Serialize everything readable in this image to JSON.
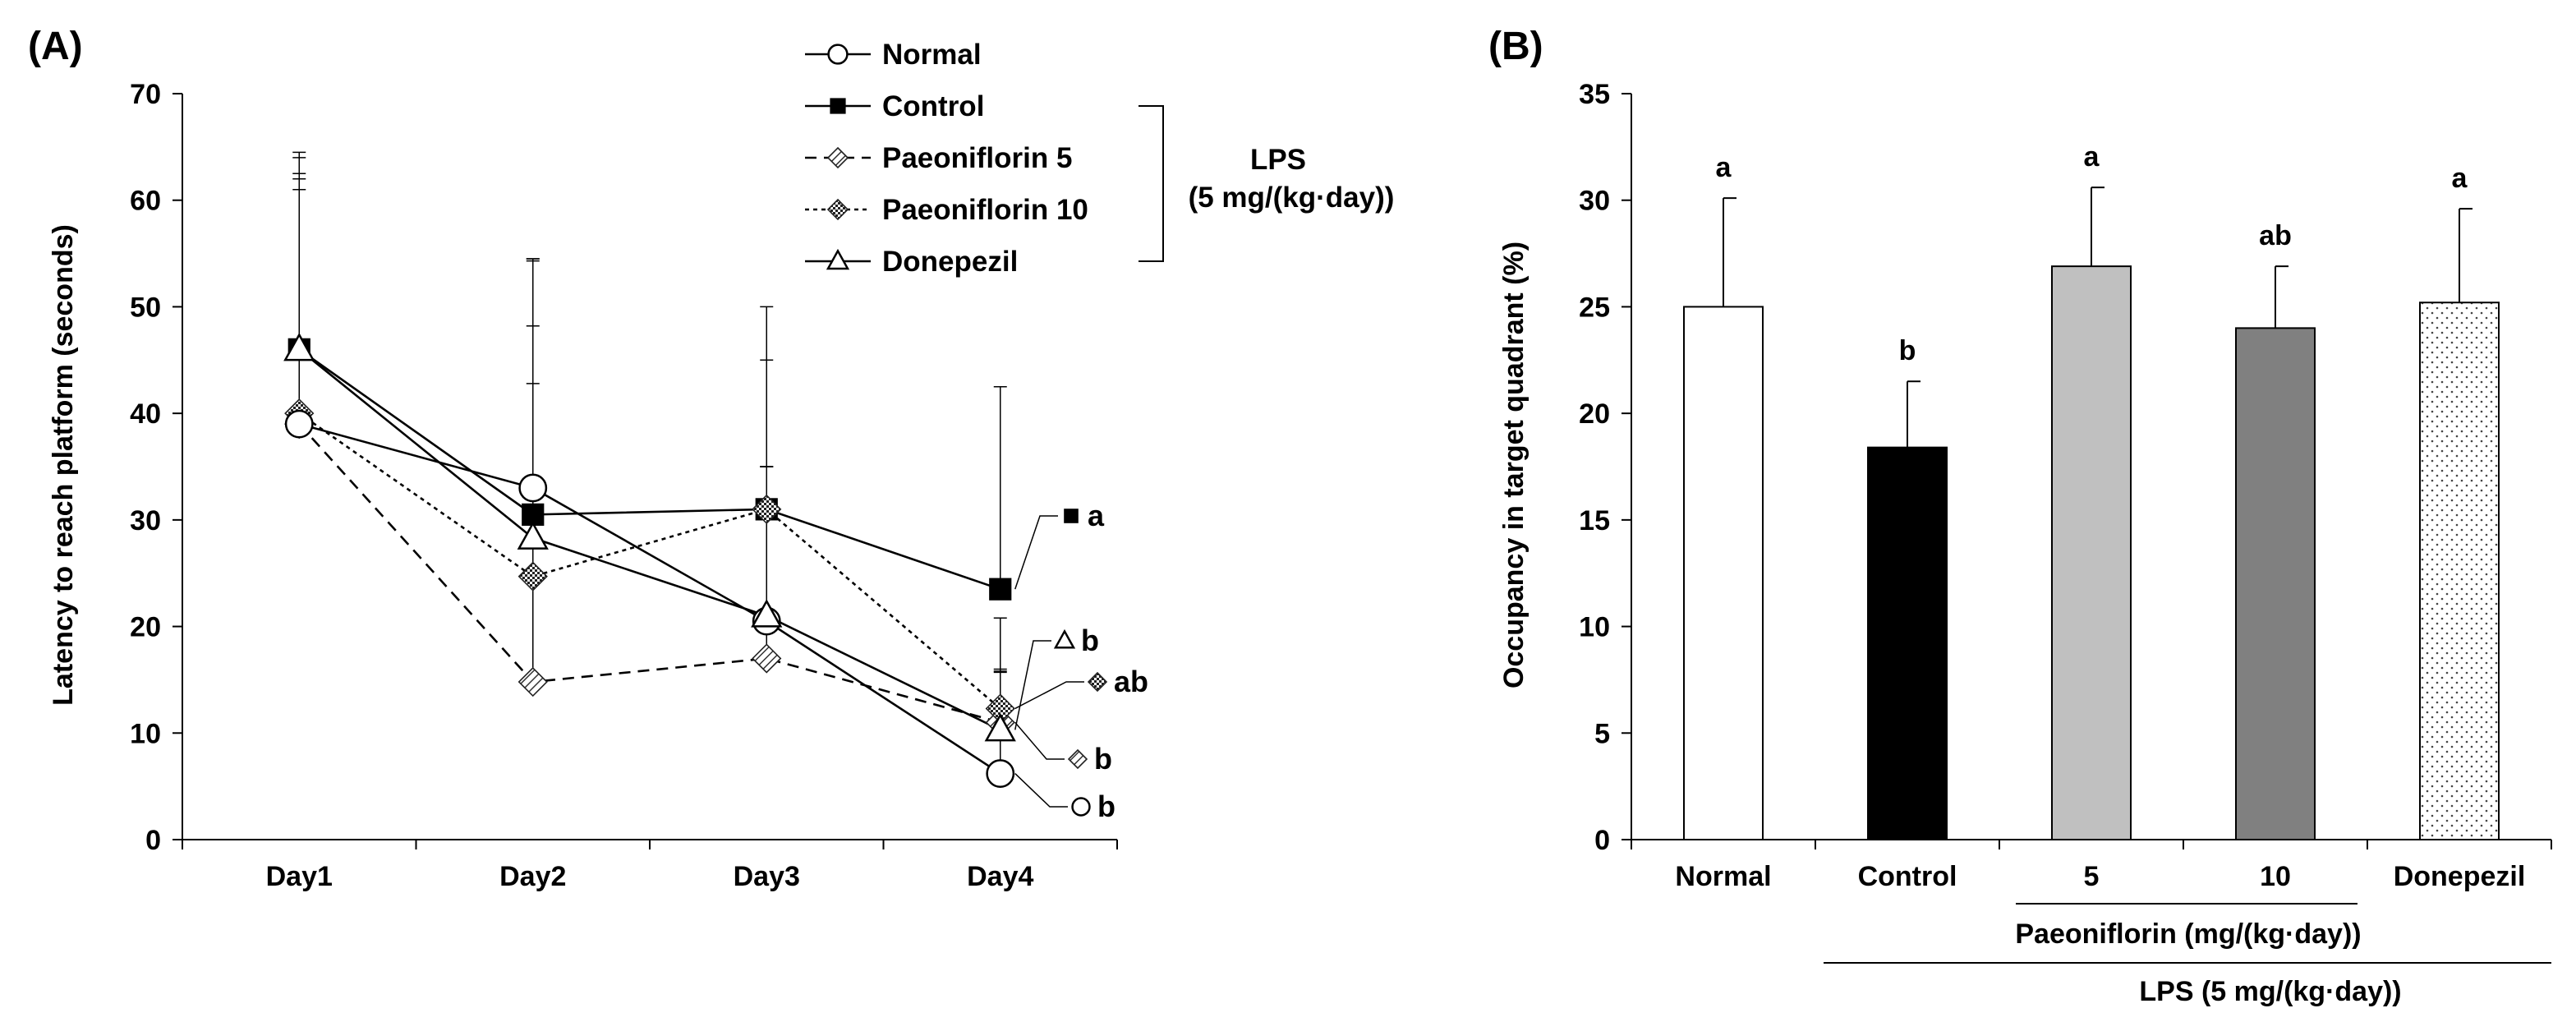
{
  "panels": {
    "a_label": "(A)",
    "b_label": "(B)"
  },
  "chart_data": [
    {
      "type": "line",
      "title": "",
      "xlabel": "",
      "ylabel": "Latency to reach platform (seconds)",
      "categories": [
        "Day1",
        "Day2",
        "Day3",
        "Day4"
      ],
      "ylim": [
        0,
        70
      ],
      "yticks": [
        "0",
        "10",
        "20",
        "30",
        "40",
        "50",
        "60",
        "70"
      ],
      "grid": false,
      "legend_position": "top-center",
      "series": [
        {
          "name": "Normal",
          "marker": "circle",
          "dash": "solid",
          "values": [
            39,
            33,
            20.5,
            6.2
          ],
          "error": [
            25,
            21.5,
            14.5,
            9.5
          ],
          "sig": "b"
        },
        {
          "name": "Control",
          "marker": "square",
          "dash": "solid",
          "values": [
            46,
            30.5,
            31,
            23.5
          ],
          "error": [
            18.5,
            24,
            19,
            19
          ],
          "sig": "a"
        },
        {
          "name": "Paeoniflorin 5",
          "marker": "diamond-hatch",
          "dash": "dashed",
          "values": [
            39,
            14.8,
            17,
            11
          ],
          "error": [
            23,
            28,
            18,
            5
          ],
          "sig": "b"
        },
        {
          "name": "Paeoniflorin 10",
          "marker": "diamond-dot",
          "dash": "dotted",
          "values": [
            40,
            24.7,
            31,
            12.3
          ],
          "error": [
            22.5,
            23.5,
            14,
            8.5
          ],
          "sig": "ab"
        },
        {
          "name": "Donepezil",
          "marker": "triangle",
          "dash": "solid",
          "values": [
            46,
            28.3,
            21,
            10.3
          ],
          "error": [
            15,
            26,
            14,
            5.5
          ],
          "sig": "b"
        }
      ],
      "legend_group_label": [
        "LPS",
        "(5 mg/(kg·day))"
      ]
    },
    {
      "type": "bar",
      "title": "",
      "xlabel": "",
      "ylabel": "Occupancy in target quadrant (%)",
      "categories": [
        "Normal",
        "Control",
        "5",
        "10",
        "Donepezil"
      ],
      "values": [
        25.0,
        18.4,
        26.9,
        24.0,
        25.2
      ],
      "error": [
        5.1,
        3.1,
        3.7,
        2.9,
        4.4
      ],
      "significance": [
        "a",
        "b",
        "a",
        "ab",
        "a"
      ],
      "fills": [
        "white",
        "black",
        "light-gray",
        "dark-gray",
        "dotted"
      ],
      "ylim": [
        0,
        35
      ],
      "yticks": [
        "0",
        "5",
        "10",
        "15",
        "20",
        "25",
        "30",
        "35"
      ],
      "grid": false,
      "group_labels": {
        "paeoniflorin": "Paeoniflorin (mg/(kg·day))",
        "lps": "LPS (5 mg/(kg·day))"
      }
    }
  ]
}
